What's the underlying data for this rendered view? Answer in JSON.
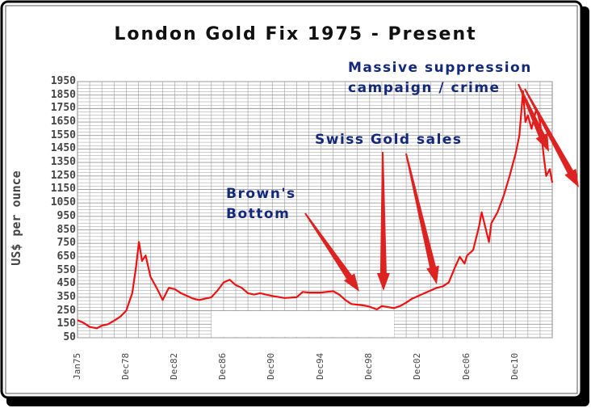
{
  "chart_data": {
    "type": "line",
    "title": "London Gold Fix 1975 - Present",
    "ylabel": "US$ per ounce",
    "xlabel": "",
    "ylim": [
      50,
      1950
    ],
    "y_ticks": [
      "1950",
      "1850",
      "1750",
      "1650",
      "1550",
      "1450",
      "1350",
      "1250",
      "1150",
      "1050",
      "950",
      "850",
      "750",
      "650",
      "550",
      "450",
      "350",
      "250",
      "150",
      "50"
    ],
    "x_tick_labels": [
      "Jan75",
      "Dec78",
      "Dec82",
      "Dec86",
      "Dec90",
      "Dec94",
      "Dec98",
      "Dec02",
      "Dec06",
      "Dec10"
    ],
    "x_range": [
      1975.0,
      2014.0
    ],
    "grid": true,
    "series": [
      {
        "color": "#ee1111",
        "x": [
          1975.0,
          1975.5,
          1976.0,
          1976.6,
          1977.0,
          1977.5,
          1978.0,
          1978.5,
          1979.0,
          1979.5,
          1979.8,
          1980.05,
          1980.3,
          1980.6,
          1981.0,
          1981.5,
          1982.0,
          1982.5,
          1983.0,
          1983.5,
          1984.0,
          1984.5,
          1985.0,
          1985.5,
          1986.0,
          1986.5,
          1987.0,
          1987.5,
          1988.0,
          1988.5,
          1989.0,
          1989.5,
          1990.0,
          1991.0,
          1992.0,
          1993.0,
          1993.5,
          1994.0,
          1995.0,
          1996.0,
          1996.5,
          1997.0,
          1997.5,
          1998.0,
          1998.5,
          1999.0,
          1999.6,
          2000.0,
          2001.0,
          2001.5,
          2002.0,
          2002.5,
          2003.0,
          2003.5,
          2004.0,
          2004.5,
          2005.0,
          2005.5,
          2006.0,
          2006.4,
          2006.8,
          2007.0,
          2007.5,
          2008.0,
          2008.2,
          2008.8,
          2009.0,
          2009.5,
          2010.0,
          2010.5,
          2011.0,
          2011.3,
          2011.6,
          2011.8,
          2012.0,
          2012.3,
          2012.7,
          2013.0,
          2013.3,
          2013.5,
          2013.8,
          2014.0
        ],
        "values": [
          180,
          160,
          130,
          120,
          140,
          150,
          175,
          205,
          250,
          380,
          570,
          760,
          620,
          660,
          500,
          420,
          330,
          420,
          410,
          380,
          360,
          340,
          330,
          340,
          350,
          400,
          460,
          480,
          440,
          420,
          380,
          370,
          380,
          360,
          345,
          350,
          390,
          385,
          385,
          395,
          370,
          330,
          300,
          295,
          290,
          280,
          260,
          285,
          270,
          285,
          310,
          340,
          360,
          380,
          400,
          420,
          430,
          460,
          570,
          650,
          600,
          660,
          700,
          880,
          980,
          760,
          900,
          980,
          1100,
          1250,
          1420,
          1550,
          1880,
          1650,
          1700,
          1600,
          1750,
          1650,
          1400,
          1250,
          1300,
          1200
        ]
      }
    ],
    "annotations": [
      {
        "lines": [
          "Brown's",
          "Bottom"
        ]
      },
      {
        "lines": [
          "Swiss Gold sales"
        ]
      },
      {
        "lines": [
          "Massive suppression",
          "campaign / crime"
        ]
      }
    ]
  },
  "colors": {
    "line": "#ee1111",
    "annotation": "#14297a",
    "grid": "#999999",
    "arrow": "#dd2222"
  }
}
